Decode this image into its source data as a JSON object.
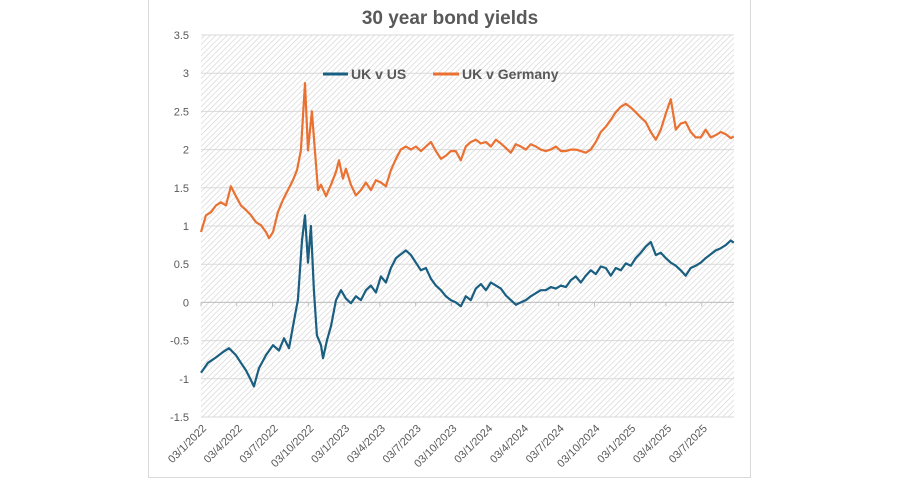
{
  "chart_data": {
    "type": "line",
    "title": "30 year bond yields",
    "xlabel": "",
    "ylabel": "",
    "ylim": [
      -1.5,
      3.5
    ],
    "yticks": [
      "3.5",
      "3",
      "2.5",
      "2",
      "1.5",
      "1",
      "0.5",
      "0",
      "-0.5",
      "-1",
      "-1.5"
    ],
    "x_units": "months since 03/1/2022",
    "xlim": [
      0,
      44.7
    ],
    "xtick_labels": [
      "03/1/2022",
      "03/4/2022",
      "03/7/2022",
      "03/10/2022",
      "03/1/2023",
      "03/4/2023",
      "03/7/2023",
      "03/10/2023",
      "03/1/2024",
      "03/4/2024",
      "03/7/2024",
      "03/10/2024",
      "03/1/2025",
      "03/4/2025",
      "03/7/2025"
    ],
    "grid": true,
    "legend_position": "top-center",
    "colors": {
      "uk_v_us": "#1a5e80",
      "uk_v_germany": "#e97132",
      "text": "#595959",
      "grid": "#d9d9d9"
    },
    "series": [
      {
        "name": "UK v US",
        "color": "#1a5e80",
        "points": [
          [
            0,
            -0.92
          ],
          [
            0.59,
            -0.79
          ],
          [
            1.26,
            -0.72
          ],
          [
            1.84,
            -0.65
          ],
          [
            2.35,
            -0.6
          ],
          [
            2.93,
            -0.69
          ],
          [
            3.35,
            -0.79
          ],
          [
            3.77,
            -0.89
          ],
          [
            4.19,
            -1.02
          ],
          [
            4.44,
            -1.1
          ],
          [
            4.86,
            -0.86
          ],
          [
            5.45,
            -0.69
          ],
          [
            6.04,
            -0.56
          ],
          [
            6.54,
            -0.63
          ],
          [
            6.96,
            -0.47
          ],
          [
            7.38,
            -0.6
          ],
          [
            7.8,
            -0.24
          ],
          [
            8.13,
            0.03
          ],
          [
            8.47,
            0.81
          ],
          [
            8.72,
            1.14
          ],
          [
            8.97,
            0.52
          ],
          [
            9.22,
            1.0
          ],
          [
            9.47,
            0.16
          ],
          [
            9.72,
            -0.43
          ],
          [
            10.06,
            -0.56
          ],
          [
            10.23,
            -0.73
          ],
          [
            10.56,
            -0.5
          ],
          [
            10.9,
            -0.31
          ],
          [
            11.32,
            0.03
          ],
          [
            11.74,
            0.16
          ],
          [
            12.15,
            0.05
          ],
          [
            12.57,
            -0.01
          ],
          [
            12.99,
            0.08
          ],
          [
            13.41,
            0.03
          ],
          [
            13.83,
            0.16
          ],
          [
            14.25,
            0.22
          ],
          [
            14.67,
            0.13
          ],
          [
            15.09,
            0.34
          ],
          [
            15.51,
            0.26
          ],
          [
            15.93,
            0.45
          ],
          [
            16.35,
            0.58
          ],
          [
            16.76,
            0.63
          ],
          [
            17.18,
            0.68
          ],
          [
            17.6,
            0.62
          ],
          [
            18.02,
            0.52
          ],
          [
            18.44,
            0.42
          ],
          [
            18.86,
            0.45
          ],
          [
            19.28,
            0.31
          ],
          [
            19.7,
            0.22
          ],
          [
            20.12,
            0.16
          ],
          [
            20.54,
            0.08
          ],
          [
            20.95,
            0.03
          ],
          [
            21.37,
            0.0
          ],
          [
            21.79,
            -0.05
          ],
          [
            22.21,
            0.08
          ],
          [
            22.63,
            0.03
          ],
          [
            23.05,
            0.18
          ],
          [
            23.47,
            0.24
          ],
          [
            23.89,
            0.16
          ],
          [
            24.31,
            0.26
          ],
          [
            24.73,
            0.22
          ],
          [
            25.15,
            0.18
          ],
          [
            25.57,
            0.09
          ],
          [
            25.98,
            0.03
          ],
          [
            26.4,
            -0.03
          ],
          [
            26.82,
            0.0
          ],
          [
            27.24,
            0.03
          ],
          [
            27.66,
            0.08
          ],
          [
            28.08,
            0.12
          ],
          [
            28.5,
            0.16
          ],
          [
            28.92,
            0.16
          ],
          [
            29.34,
            0.2
          ],
          [
            29.76,
            0.18
          ],
          [
            30.18,
            0.22
          ],
          [
            30.6,
            0.2
          ],
          [
            31.01,
            0.29
          ],
          [
            31.43,
            0.34
          ],
          [
            31.85,
            0.26
          ],
          [
            32.27,
            0.35
          ],
          [
            32.69,
            0.42
          ],
          [
            33.11,
            0.37
          ],
          [
            33.53,
            0.47
          ],
          [
            33.95,
            0.45
          ],
          [
            34.37,
            0.35
          ],
          [
            34.79,
            0.45
          ],
          [
            35.21,
            0.42
          ],
          [
            35.63,
            0.51
          ],
          [
            36.05,
            0.48
          ],
          [
            36.46,
            0.58
          ],
          [
            36.88,
            0.65
          ],
          [
            37.3,
            0.73
          ],
          [
            37.72,
            0.79
          ],
          [
            38.14,
            0.62
          ],
          [
            38.56,
            0.65
          ],
          [
            38.98,
            0.58
          ],
          [
            39.4,
            0.52
          ],
          [
            39.82,
            0.48
          ],
          [
            40.23,
            0.42
          ],
          [
            40.65,
            0.35
          ],
          [
            41.07,
            0.45
          ],
          [
            41.49,
            0.48
          ],
          [
            41.91,
            0.52
          ],
          [
            42.33,
            0.58
          ],
          [
            42.75,
            0.63
          ],
          [
            43.17,
            0.68
          ],
          [
            43.59,
            0.71
          ],
          [
            44.01,
            0.75
          ],
          [
            44.43,
            0.81
          ],
          [
            44.68,
            0.78
          ]
        ]
      },
      {
        "name": "UK v Germany",
        "color": "#e97132",
        "points": [
          [
            0,
            0.92
          ],
          [
            0.42,
            1.14
          ],
          [
            0.84,
            1.18
          ],
          [
            1.26,
            1.27
          ],
          [
            1.68,
            1.31
          ],
          [
            2.1,
            1.27
          ],
          [
            2.51,
            1.52
          ],
          [
            2.93,
            1.39
          ],
          [
            3.35,
            1.27
          ],
          [
            3.77,
            1.21
          ],
          [
            4.19,
            1.14
          ],
          [
            4.61,
            1.05
          ],
          [
            5.03,
            1.01
          ],
          [
            5.45,
            0.92
          ],
          [
            5.7,
            0.84
          ],
          [
            6.04,
            0.92
          ],
          [
            6.45,
            1.18
          ],
          [
            6.87,
            1.34
          ],
          [
            7.29,
            1.47
          ],
          [
            7.71,
            1.6
          ],
          [
            8.05,
            1.73
          ],
          [
            8.38,
            1.99
          ],
          [
            8.72,
            2.87
          ],
          [
            8.97,
            1.99
          ],
          [
            9.3,
            2.5
          ],
          [
            9.55,
            1.99
          ],
          [
            9.81,
            1.47
          ],
          [
            10.06,
            1.54
          ],
          [
            10.48,
            1.39
          ],
          [
            10.9,
            1.54
          ],
          [
            11.32,
            1.71
          ],
          [
            11.57,
            1.86
          ],
          [
            11.9,
            1.62
          ],
          [
            12.15,
            1.75
          ],
          [
            12.57,
            1.54
          ],
          [
            12.99,
            1.4
          ],
          [
            13.41,
            1.47
          ],
          [
            13.83,
            1.57
          ],
          [
            14.25,
            1.47
          ],
          [
            14.67,
            1.6
          ],
          [
            15.09,
            1.57
          ],
          [
            15.51,
            1.52
          ],
          [
            15.93,
            1.73
          ],
          [
            16.35,
            1.88
          ],
          [
            16.76,
            2.0
          ],
          [
            17.18,
            2.04
          ],
          [
            17.6,
            2.0
          ],
          [
            18.02,
            2.04
          ],
          [
            18.44,
            1.98
          ],
          [
            18.86,
            2.04
          ],
          [
            19.28,
            2.1
          ],
          [
            19.7,
            1.98
          ],
          [
            20.12,
            1.88
          ],
          [
            20.54,
            1.92
          ],
          [
            20.95,
            1.98
          ],
          [
            21.37,
            1.98
          ],
          [
            21.79,
            1.86
          ],
          [
            22.21,
            2.04
          ],
          [
            22.63,
            2.1
          ],
          [
            23.05,
            2.13
          ],
          [
            23.47,
            2.08
          ],
          [
            23.89,
            2.1
          ],
          [
            24.31,
            2.04
          ],
          [
            24.73,
            2.13
          ],
          [
            25.15,
            2.08
          ],
          [
            25.57,
            2.02
          ],
          [
            25.98,
            1.96
          ],
          [
            26.4,
            2.07
          ],
          [
            26.82,
            2.04
          ],
          [
            27.24,
            2.0
          ],
          [
            27.66,
            2.07
          ],
          [
            28.08,
            2.04
          ],
          [
            28.5,
            2.0
          ],
          [
            28.92,
            1.98
          ],
          [
            29.34,
            2.0
          ],
          [
            29.76,
            2.04
          ],
          [
            30.18,
            1.98
          ],
          [
            30.6,
            1.98
          ],
          [
            31.01,
            2.0
          ],
          [
            31.43,
            2.0
          ],
          [
            31.85,
            1.98
          ],
          [
            32.27,
            1.96
          ],
          [
            32.69,
            2.0
          ],
          [
            33.11,
            2.1
          ],
          [
            33.53,
            2.23
          ],
          [
            33.95,
            2.3
          ],
          [
            34.37,
            2.39
          ],
          [
            34.79,
            2.49
          ],
          [
            35.21,
            2.56
          ],
          [
            35.63,
            2.6
          ],
          [
            36.05,
            2.55
          ],
          [
            36.46,
            2.49
          ],
          [
            36.88,
            2.42
          ],
          [
            37.3,
            2.36
          ],
          [
            37.72,
            2.23
          ],
          [
            38.14,
            2.13
          ],
          [
            38.56,
            2.26
          ],
          [
            38.98,
            2.47
          ],
          [
            39.4,
            2.66
          ],
          [
            39.82,
            2.26
          ],
          [
            40.23,
            2.34
          ],
          [
            40.65,
            2.36
          ],
          [
            41.07,
            2.23
          ],
          [
            41.49,
            2.16
          ],
          [
            41.91,
            2.16
          ],
          [
            42.33,
            2.26
          ],
          [
            42.75,
            2.16
          ],
          [
            43.17,
            2.19
          ],
          [
            43.59,
            2.23
          ],
          [
            44.01,
            2.2
          ],
          [
            44.43,
            2.15
          ],
          [
            44.68,
            2.17
          ]
        ]
      }
    ]
  }
}
